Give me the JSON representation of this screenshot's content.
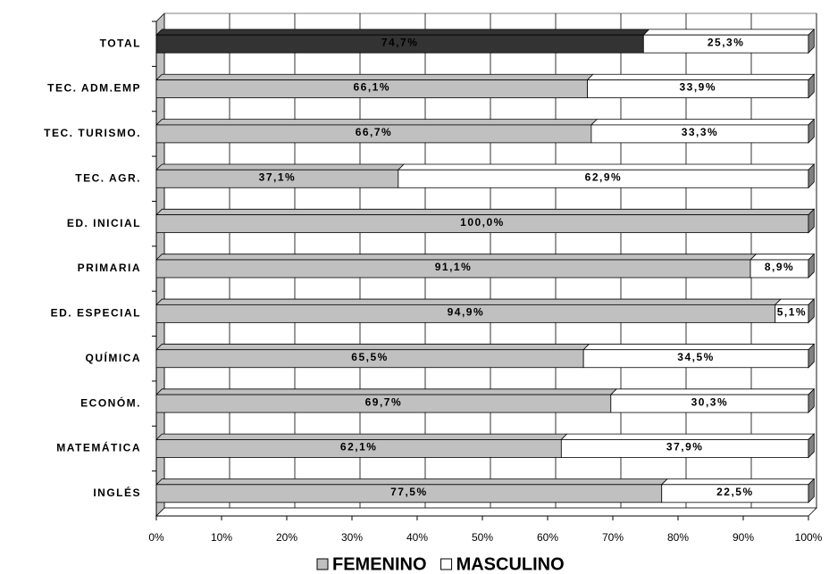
{
  "chart_data": {
    "type": "stacked_barh",
    "categories": [
      "TOTAL",
      "TEC. ADM.EMP",
      "TEC. TURISMO.",
      "TEC. AGR.",
      "ED. INICIAL",
      "PRIMARIA",
      "ED. ESPECIAL",
      "QUÍMICA",
      "ECONÓM.",
      "MATEMÁTICA",
      "INGLÉS"
    ],
    "series": [
      {
        "name": "FEMENINO",
        "color": "#c0c0c0",
        "colors": [
          "#333333",
          "#c0c0c0",
          "#c0c0c0",
          "#c0c0c0",
          "#c0c0c0",
          "#c0c0c0",
          "#c0c0c0",
          "#c0c0c0",
          "#c0c0c0",
          "#c0c0c0",
          "#c0c0c0"
        ],
        "values": [
          74.7,
          66.1,
          66.7,
          37.1,
          100,
          91.1,
          94.9,
          65.5,
          69.7,
          62.1,
          77.5
        ],
        "value_labels": [
          "74,7%",
          "66,1%",
          "66,7%",
          "37,1%",
          "100,0%",
          "91,1%",
          "94,9%",
          "65,5%",
          "69,7%",
          "62,1%",
          "77,5%"
        ]
      },
      {
        "name": "MASCULINO",
        "color": "#ffffff",
        "values": [
          25.3,
          33.9,
          33.3,
          62.9,
          0,
          8.9,
          5.1,
          34.5,
          30.3,
          37.9,
          22.5
        ],
        "value_labels": [
          "25,3%",
          "33,9%",
          "33,3%",
          "62,9%",
          null,
          "8,9%",
          "5,1%",
          "34,5%",
          "30,3%",
          "37,9%",
          "22,5%"
        ]
      }
    ],
    "xlim": [
      0,
      100
    ],
    "xticks": [
      {
        "value": 0,
        "label": "0%"
      },
      {
        "value": 10,
        "label": "10%"
      },
      {
        "value": 20,
        "label": "20%"
      },
      {
        "value": 30,
        "label": "30%"
      },
      {
        "value": 40,
        "label": "40%"
      },
      {
        "value": 50,
        "label": "50%"
      },
      {
        "value": 60,
        "label": "60%"
      },
      {
        "value": 70,
        "label": "70%"
      },
      {
        "value": 80,
        "label": "80%"
      },
      {
        "value": 90,
        "label": "90%"
      },
      {
        "value": 100,
        "label": "100%"
      }
    ],
    "grid": true,
    "legend": "bottom"
  }
}
